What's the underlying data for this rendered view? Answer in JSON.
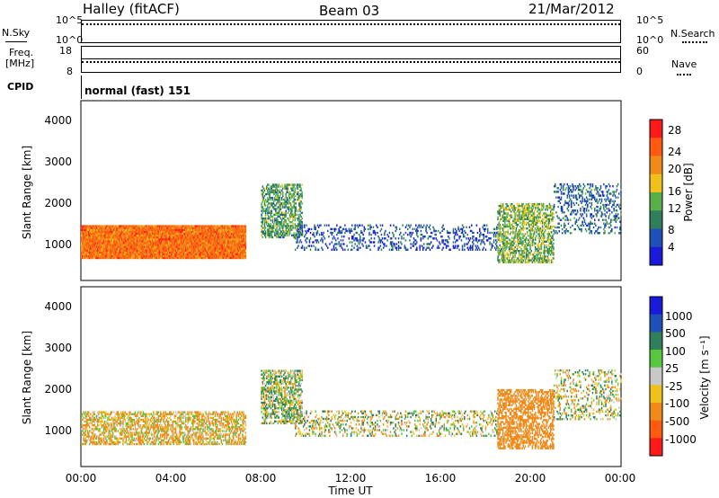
{
  "header": {
    "station": "Halley (fitACF)",
    "beam": "Beam 03",
    "date": "21/Mar/2012"
  },
  "left_labels": {
    "nsky": "N.Sky",
    "nsky_top": "10^5",
    "nsky_bottom": "10^0",
    "freq": "Freq.",
    "freq_unit": "[MHz]",
    "freq_top": "18",
    "freq_bottom": "8",
    "cpid": "CPID"
  },
  "right_labels": {
    "nsearch": "N.Search",
    "nsearch_top": "10^5",
    "nsearch_bottom": "10^0",
    "nave": "Nave",
    "nave_top": "60",
    "nave_bottom": "0"
  },
  "cpid_text": "normal (fast) 151",
  "x_axis": {
    "ticks": [
      "00:00",
      "04:00",
      "08:00",
      "12:00",
      "16:00",
      "20:00",
      "00:00"
    ],
    "label": "Time UT"
  },
  "y_axis": {
    "label": "Slant Range [km]",
    "ticks": [
      "1000",
      "2000",
      "3000",
      "4000"
    ]
  },
  "power_colorbar": {
    "label": "Power [dB]",
    "ticks": [
      "4",
      "8",
      "12",
      "16",
      "20",
      "24",
      "28"
    ],
    "colors": [
      "#1a1adb",
      "#1f4fb8",
      "#2e7f5a",
      "#59b04a",
      "#f0c11a",
      "#f08a1a",
      "#ff5a10",
      "#ff1a1a"
    ]
  },
  "velocity_colorbar": {
    "label": "Velocity [m s⁻¹]",
    "ticks": [
      "1000",
      "500",
      "100",
      "25",
      "-25",
      "-100",
      "-500",
      "-1000"
    ],
    "colors": [
      "#1a1adb",
      "#1f4fb8",
      "#2e7f5a",
      "#59c640",
      "#c8c8c8",
      "#f0c11a",
      "#f08a1a",
      "#ff5a10",
      "#ff1a1a"
    ]
  },
  "chart_data": [
    {
      "type": "heatmap",
      "title": "Power",
      "xlabel": "Time UT",
      "ylabel": "Slant Range [km]",
      "xlim": [
        0,
        24
      ],
      "ylim": [
        180,
        4500
      ],
      "x_ticks": [
        "00:00",
        "04:00",
        "08:00",
        "12:00",
        "16:00",
        "20:00",
        "00:00"
      ],
      "y_ticks": [
        1000,
        2000,
        3000,
        4000
      ],
      "colorbar": {
        "label": "Power [dB]",
        "ticks": [
          4,
          8,
          12,
          16,
          20,
          24,
          28
        ]
      },
      "regions": [
        {
          "t0": 0.0,
          "t1": 7.3,
          "r0": 700,
          "r1": 1500,
          "level": "high",
          "approx_db": 24
        },
        {
          "t0": 8.0,
          "t1": 9.8,
          "r0": 1200,
          "r1": 2500,
          "level": "medium",
          "approx_db": 12
        },
        {
          "t0": 9.5,
          "t1": 18.5,
          "r0": 900,
          "r1": 1500,
          "level": "low",
          "approx_db": 6
        },
        {
          "t0": 18.5,
          "t1": 21.0,
          "r0": 600,
          "r1": 2000,
          "level": "medium",
          "approx_db": 14
        },
        {
          "t0": 21.0,
          "t1": 24.0,
          "r0": 1300,
          "r1": 2500,
          "level": "low",
          "approx_db": 8
        }
      ]
    },
    {
      "type": "heatmap",
      "title": "Velocity",
      "xlabel": "Time UT",
      "ylabel": "Slant Range [km]",
      "xlim": [
        0,
        24
      ],
      "ylim": [
        180,
        4500
      ],
      "x_ticks": [
        "00:00",
        "04:00",
        "08:00",
        "12:00",
        "16:00",
        "20:00",
        "00:00"
      ],
      "y_ticks": [
        1000,
        2000,
        3000,
        4000
      ],
      "colorbar": {
        "label": "Velocity [m s⁻¹]",
        "ticks": [
          1000,
          500,
          100,
          25,
          -25,
          -100,
          -500,
          -1000
        ]
      },
      "regions": [
        {
          "t0": 0.0,
          "t1": 7.3,
          "r0": 700,
          "r1": 1500,
          "level": "mixed",
          "approx_velocity": -100
        },
        {
          "t0": 8.0,
          "t1": 9.8,
          "r0": 1200,
          "r1": 2500,
          "level": "mixed",
          "approx_velocity": 50
        },
        {
          "t0": 9.5,
          "t1": 18.5,
          "r0": 900,
          "r1": 1500,
          "level": "near-zero",
          "approx_velocity": 0
        },
        {
          "t0": 18.5,
          "t1": 21.0,
          "r0": 600,
          "r1": 2000,
          "level": "negative",
          "approx_velocity": -300
        },
        {
          "t0": 21.0,
          "t1": 24.0,
          "r0": 1300,
          "r1": 2500,
          "level": "near-zero",
          "approx_velocity": 0
        }
      ]
    }
  ]
}
